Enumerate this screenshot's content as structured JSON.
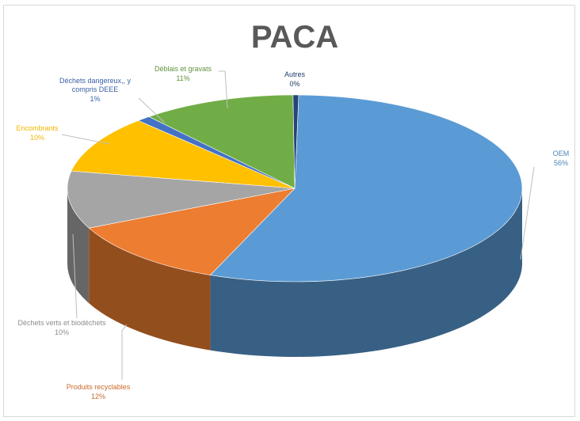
{
  "chart_data": {
    "type": "pie",
    "title": "PACA",
    "slices": [
      {
        "name": "OEM",
        "value": 56,
        "label": "56%",
        "color": "#5b9bd5"
      },
      {
        "name": "Produits recyclables",
        "value": 12,
        "label": "12%",
        "color": "#ed7d31"
      },
      {
        "name": "Déchets verts et biodéchets",
        "value": 10,
        "label": "10%",
        "color": "#a5a5a5"
      },
      {
        "name": "Encombrants",
        "value": 10,
        "label": "10%",
        "color": "#ffc000"
      },
      {
        "name": "Déchets dangereux, y compris DEEE",
        "value": 1,
        "label": "1%",
        "color": "#4472c4"
      },
      {
        "name": "Déblais et gravats",
        "value": 11,
        "label": "11%",
        "color": "#70ad47"
      },
      {
        "name": "Autres",
        "value": 0,
        "label": "0%",
        "color": "#264478"
      }
    ],
    "style": "3d"
  }
}
